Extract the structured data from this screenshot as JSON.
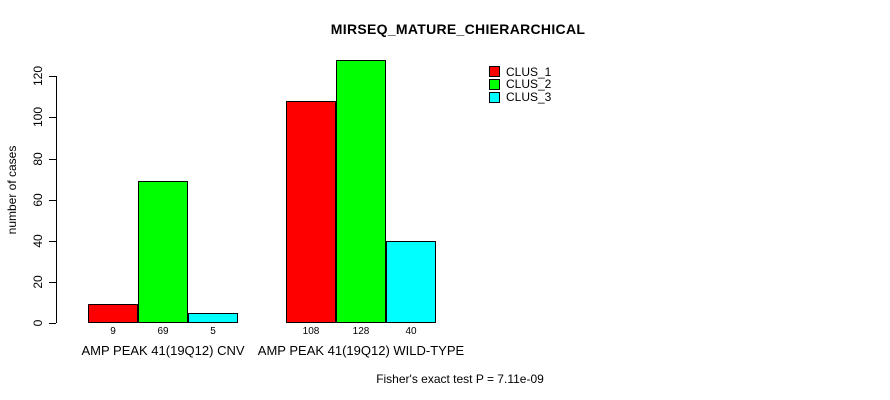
{
  "title": "MIRSEQ_MATURE_CHIERARCHICAL",
  "footer": "Fisher's exact test P = 7.11e-09",
  "colors": {
    "clus_1": "#FF0000",
    "clus_2": "#00FF00",
    "clus_3": "#00FFFF",
    "axis": "#000000",
    "background": "#FFFFFF"
  },
  "chart_data": {
    "type": "bar",
    "title": "MIRSEQ_MATURE_CHIERARCHICAL",
    "xlabel": "",
    "ylabel": "number of cases",
    "ylim": [
      0,
      120
    ],
    "yticks": [
      0,
      20,
      40,
      60,
      80,
      100,
      120
    ],
    "grid": false,
    "legend_position": "top-right",
    "categories": [
      "AMP PEAK 41(19Q12) CNV",
      "AMP PEAK 41(19Q12) WILD-TYPE"
    ],
    "series": [
      {
        "name": "CLUS_1",
        "color": "#FF0000",
        "values": [
          9,
          108
        ]
      },
      {
        "name": "CLUS_2",
        "color": "#00FF00",
        "values": [
          69,
          128
        ]
      },
      {
        "name": "CLUS_3",
        "color": "#00FFFF",
        "values": [
          5,
          40
        ]
      }
    ],
    "bar_value_labels": [
      [
        "9",
        "69",
        "5"
      ],
      [
        "108",
        "128",
        "40"
      ]
    ],
    "annotation": "Fisher's exact test P = 7.11e-09"
  }
}
